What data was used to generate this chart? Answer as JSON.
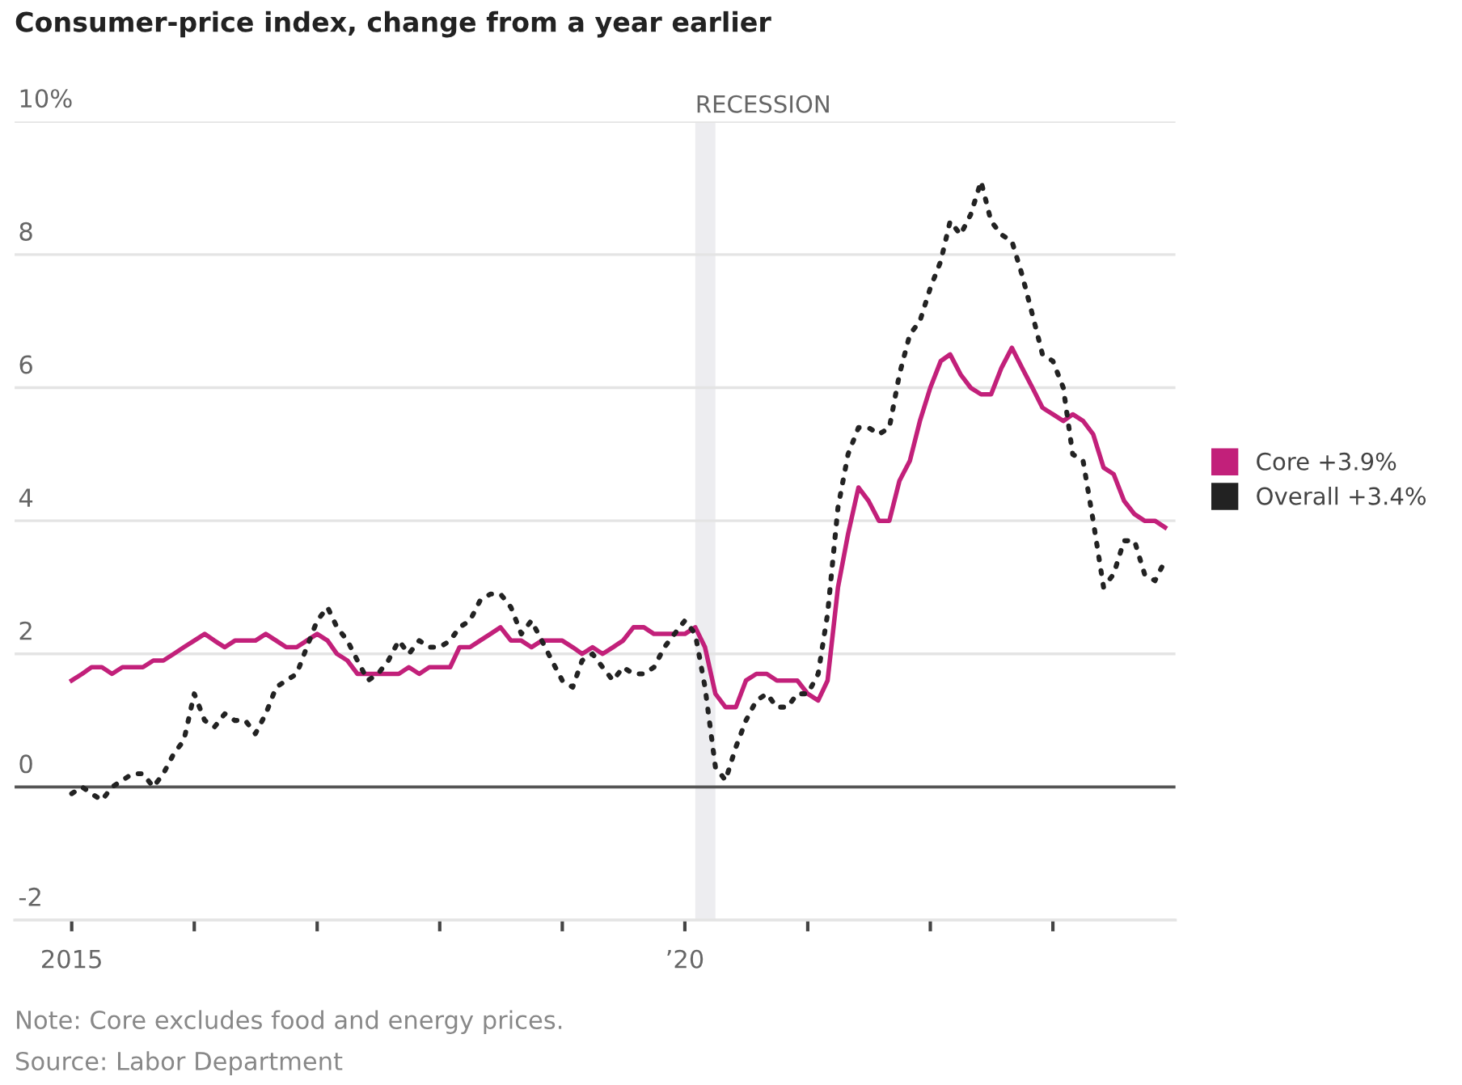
{
  "chart_data": {
    "type": "line",
    "title": "Consumer-price index, change from a year earlier",
    "x": [
      "2015-01",
      "2015-02",
      "2015-03",
      "2015-04",
      "2015-05",
      "2015-06",
      "2015-07",
      "2015-08",
      "2015-09",
      "2015-10",
      "2015-11",
      "2015-12",
      "2016-01",
      "2016-02",
      "2016-03",
      "2016-04",
      "2016-05",
      "2016-06",
      "2016-07",
      "2016-08",
      "2016-09",
      "2016-10",
      "2016-11",
      "2016-12",
      "2017-01",
      "2017-02",
      "2017-03",
      "2017-04",
      "2017-05",
      "2017-06",
      "2017-07",
      "2017-08",
      "2017-09",
      "2017-10",
      "2017-11",
      "2017-12",
      "2018-01",
      "2018-02",
      "2018-03",
      "2018-04",
      "2018-05",
      "2018-06",
      "2018-07",
      "2018-08",
      "2018-09",
      "2018-10",
      "2018-11",
      "2018-12",
      "2019-01",
      "2019-02",
      "2019-03",
      "2019-04",
      "2019-05",
      "2019-06",
      "2019-07",
      "2019-08",
      "2019-09",
      "2019-10",
      "2019-11",
      "2019-12",
      "2020-01",
      "2020-02",
      "2020-03",
      "2020-04",
      "2020-05",
      "2020-06",
      "2020-07",
      "2020-08",
      "2020-09",
      "2020-10",
      "2020-11",
      "2020-12",
      "2021-01",
      "2021-02",
      "2021-03",
      "2021-04",
      "2021-05",
      "2021-06",
      "2021-07",
      "2021-08",
      "2021-09",
      "2021-10",
      "2021-11",
      "2021-12",
      "2022-01",
      "2022-02",
      "2022-03",
      "2022-04",
      "2022-05",
      "2022-06",
      "2022-07",
      "2022-08",
      "2022-09",
      "2022-10",
      "2022-11",
      "2022-12",
      "2023-01",
      "2023-02",
      "2023-03",
      "2023-04",
      "2023-05",
      "2023-06",
      "2023-07",
      "2023-08",
      "2023-09",
      "2023-10",
      "2023-11",
      "2023-12"
    ],
    "series": [
      {
        "name": "Core +3.9%",
        "color": "#c2207a",
        "line_style": "solid",
        "values": [
          1.6,
          1.7,
          1.8,
          1.8,
          1.7,
          1.8,
          1.8,
          1.8,
          1.9,
          1.9,
          2.0,
          2.1,
          2.2,
          2.3,
          2.2,
          2.1,
          2.2,
          2.2,
          2.2,
          2.3,
          2.2,
          2.1,
          2.1,
          2.2,
          2.3,
          2.2,
          2.0,
          1.9,
          1.7,
          1.7,
          1.7,
          1.7,
          1.7,
          1.8,
          1.7,
          1.8,
          1.8,
          1.8,
          2.1,
          2.1,
          2.2,
          2.3,
          2.4,
          2.2,
          2.2,
          2.1,
          2.2,
          2.2,
          2.2,
          2.1,
          2.0,
          2.1,
          2.0,
          2.1,
          2.2,
          2.4,
          2.4,
          2.3,
          2.3,
          2.3,
          2.3,
          2.4,
          2.1,
          1.4,
          1.2,
          1.2,
          1.6,
          1.7,
          1.7,
          1.6,
          1.6,
          1.6,
          1.4,
          1.3,
          1.6,
          3.0,
          3.8,
          4.5,
          4.3,
          4.0,
          4.0,
          4.6,
          4.9,
          5.5,
          6.0,
          6.4,
          6.5,
          6.2,
          6.0,
          5.9,
          5.9,
          6.3,
          6.6,
          6.3,
          6.0,
          5.7,
          5.6,
          5.5,
          5.6,
          5.5,
          5.3,
          4.8,
          4.7,
          4.3,
          4.1,
          4.0,
          4.0,
          3.9
        ]
      },
      {
        "name": "Overall +3.4%",
        "color": "#222222",
        "line_style": "dotted",
        "values": [
          -0.1,
          0.0,
          -0.1,
          -0.2,
          0.0,
          0.1,
          0.2,
          0.2,
          0.0,
          0.2,
          0.5,
          0.7,
          1.4,
          1.0,
          0.9,
          1.1,
          1.0,
          1.0,
          0.8,
          1.1,
          1.5,
          1.6,
          1.7,
          2.1,
          2.5,
          2.7,
          2.4,
          2.2,
          1.9,
          1.6,
          1.7,
          1.9,
          2.2,
          2.0,
          2.2,
          2.1,
          2.1,
          2.2,
          2.4,
          2.5,
          2.8,
          2.9,
          2.9,
          2.7,
          2.3,
          2.5,
          2.2,
          1.9,
          1.6,
          1.5,
          1.9,
          2.0,
          1.8,
          1.6,
          1.8,
          1.7,
          1.7,
          1.8,
          2.1,
          2.3,
          2.5,
          2.3,
          1.5,
          0.3,
          0.1,
          0.6,
          1.0,
          1.3,
          1.4,
          1.2,
          1.2,
          1.4,
          1.4,
          1.7,
          2.6,
          4.2,
          5.0,
          5.4,
          5.4,
          5.3,
          5.4,
          6.2,
          6.8,
          7.0,
          7.5,
          7.9,
          8.5,
          8.3,
          8.6,
          9.1,
          8.5,
          8.3,
          8.2,
          7.7,
          7.1,
          6.5,
          6.4,
          6.0,
          5.0,
          4.9,
          4.0,
          3.0,
          3.2,
          3.7,
          3.7,
          3.2,
          3.1,
          3.4
        ]
      }
    ],
    "xlim": [
      "2014-07-15",
      "2024-01-01"
    ],
    "xticks": [
      {
        "value": "2015-01",
        "label": "2015"
      },
      {
        "value": "2016-01",
        "label": null
      },
      {
        "value": "2017-01",
        "label": null
      },
      {
        "value": "2018-01",
        "label": null
      },
      {
        "value": "2019-01",
        "label": null
      },
      {
        "value": "2020-01",
        "label": "’20"
      },
      {
        "value": "2021-01",
        "label": null
      },
      {
        "value": "2022-01",
        "label": null
      },
      {
        "value": "2023-01",
        "label": null
      }
    ],
    "ylim": [
      -2,
      10
    ],
    "yticks": [
      -2,
      0,
      2,
      4,
      6,
      8,
      {
        "value": 10,
        "label": "10%"
      }
    ],
    "grid": "y",
    "legend": "right",
    "ref_lines": [
      {
        "axis": "y",
        "value": 0,
        "label": null,
        "color": "#555555"
      }
    ],
    "bands": [
      {
        "axis": "x",
        "from": "2020-02",
        "to": "2020-04",
        "label": "RECESSION",
        "color": "#ededf0"
      }
    ],
    "annotations": [
      "Note: Core excludes food and energy prices.",
      "Source: Labor Department"
    ]
  }
}
